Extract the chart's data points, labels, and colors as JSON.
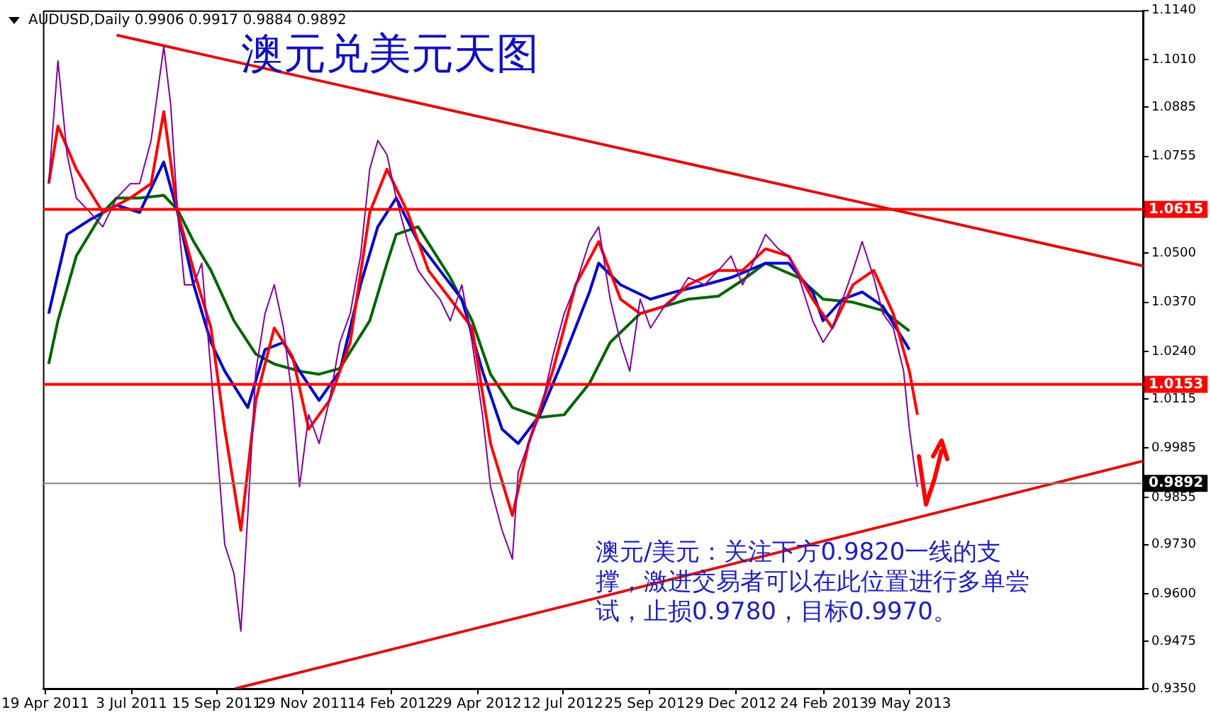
{
  "chart_data": {
    "type": "line",
    "title": "澳元兑美元天图",
    "annotations": [
      "AUDUSD,Daily  0.9906 0.9917 0.9884 0.9892",
      "澳元/美元：关注下方0.9820一线的支撑，激进交易者可以在此位置进行多单尝试，止损0.9780，目标0.9970。"
    ],
    "xlim": [
      "2011-04-17",
      "2013-11-28"
    ],
    "xticks": [
      {
        "value": "2011-04-19",
        "label": "19 Apr 2011"
      },
      {
        "value": "2011-07-03",
        "label": "3 Jul 2011"
      },
      {
        "value": "2011-09-15",
        "label": "15 Sep 2011"
      },
      {
        "value": "2011-11-29",
        "label": "29 Nov 2011"
      },
      {
        "value": "2012-02-14",
        "label": "14 Feb 2012"
      },
      {
        "value": "2012-04-29",
        "label": "29 Apr 2012"
      },
      {
        "value": "2012-07-12",
        "label": "12 Jul 2012"
      },
      {
        "value": "2012-09-25",
        "label": "25 Sep 2012"
      },
      {
        "value": "2012-12-09",
        "label": "9 Dec 2012"
      },
      {
        "value": "2013-02-24",
        "label": "24 Feb 2013"
      },
      {
        "value": "2013-05-09",
        "label": "9 May 2013"
      }
    ],
    "ylim": [
      0.935,
      1.114
    ],
    "yticks": [
      {
        "value": 1.114,
        "label": "1.1140"
      },
      {
        "value": 1.101,
        "label": "1.1010"
      },
      {
        "value": 1.0885,
        "label": "1.0885"
      },
      {
        "value": 1.0755,
        "label": "1.0755"
      },
      {
        "value": 1.0625,
        "label": null
      },
      {
        "value": 1.05,
        "label": "1.0500"
      },
      {
        "value": 1.037,
        "label": "1.0370"
      },
      {
        "value": 1.024,
        "label": "1.0240"
      },
      {
        "value": 1.0115,
        "label": "1.0115"
      },
      {
        "value": 0.9985,
        "label": "0.9985"
      },
      {
        "value": 0.9855,
        "label": "0.9855"
      },
      {
        "value": 0.973,
        "label": "0.9730"
      },
      {
        "value": 0.96,
        "label": "0.9600"
      },
      {
        "value": 0.9475,
        "label": "0.9475"
      },
      {
        "value": 0.935,
        "label": "0.9350"
      }
    ],
    "ref_lines": [
      {
        "axis": "y",
        "value": 1.0615,
        "label": "1.0615",
        "color": "#ff0000"
      },
      {
        "axis": "y",
        "value": 1.0153,
        "label": "1.0153",
        "color": "#ff0000"
      },
      {
        "axis": "y",
        "value": 0.9892,
        "label": "0.9892",
        "color": "#808080"
      }
    ],
    "marker": "none",
    "legend": false,
    "series": [
      {
        "type": "line",
        "color": "#8000a0",
        "x": [
          "2011-04-22",
          "2011-04-30",
          "2011-05-08",
          "2011-05-16",
          "2011-05-28",
          "2011-06-08",
          "2011-06-20",
          "2011-07-02",
          "2011-07-10",
          "2011-07-20",
          "2011-07-31",
          "2011-08-06",
          "2011-08-12",
          "2011-08-18",
          "2011-08-26",
          "2011-09-02",
          "2011-09-10",
          "2011-09-22",
          "2011-09-30",
          "2011-10-06",
          "2011-10-12",
          "2011-10-19",
          "2011-10-27",
          "2011-11-04",
          "2011-11-12",
          "2011-11-20",
          "2011-11-26",
          "2011-12-04",
          "2011-12-13",
          "2011-12-22",
          "2011-12-31",
          "2012-01-09",
          "2012-01-18",
          "2012-01-26",
          "2012-02-02",
          "2012-02-10",
          "2012-02-18",
          "2012-02-28",
          "2012-03-08",
          "2012-03-17",
          "2012-03-27",
          "2012-04-05",
          "2012-04-15",
          "2012-04-24",
          "2012-05-03",
          "2012-05-10",
          "2012-05-20",
          "2012-05-29",
          "2012-06-03",
          "2012-06-12",
          "2012-06-22",
          "2012-07-03",
          "2012-07-13",
          "2012-07-23",
          "2012-08-04",
          "2012-08-12",
          "2012-08-22",
          "2012-08-31",
          "2012-09-08",
          "2012-09-17",
          "2012-09-26",
          "2012-10-08",
          "2012-10-17",
          "2012-10-29",
          "2012-11-12",
          "2012-11-24",
          "2012-12-05",
          "2012-12-15",
          "2012-12-24",
          "2013-01-04",
          "2013-01-15",
          "2013-01-24",
          "2013-02-02",
          "2013-02-14",
          "2013-02-23",
          "2013-03-03",
          "2013-03-12",
          "2013-03-21",
          "2013-03-29",
          "2013-04-08",
          "2013-04-16",
          "2013-04-25",
          "2013-05-04",
          "2013-05-09",
          "2013-05-14",
          "2013-05-16"
        ],
        "values": [
          1.0683,
          1.1007,
          1.0759,
          1.0645,
          1.0607,
          1.0569,
          1.0645,
          1.0683,
          1.0683,
          1.0797,
          1.1045,
          1.0892,
          1.0607,
          1.0416,
          1.0416,
          1.0473,
          1.0188,
          0.973,
          0.9654,
          0.9502,
          0.9807,
          1.0188,
          1.034,
          1.0416,
          1.0302,
          1.0111,
          0.9883,
          1.0073,
          0.9997,
          1.0111,
          1.0264,
          1.034,
          1.0492,
          1.0721,
          1.0797,
          1.0759,
          1.0645,
          1.053,
          1.0454,
          1.0416,
          1.0378,
          1.0321,
          1.0416,
          1.0264,
          1.0073,
          0.9883,
          0.9768,
          0.9692,
          0.9921,
          0.9997,
          1.0073,
          1.0226,
          1.034,
          1.0416,
          1.053,
          1.0569,
          1.0378,
          1.0264,
          1.0188,
          1.0378,
          1.0302,
          1.0359,
          1.0378,
          1.0435,
          1.0416,
          1.0454,
          1.0492,
          1.0416,
          1.0473,
          1.0549,
          1.0511,
          1.0492,
          1.0435,
          1.0321,
          1.0264,
          1.0302,
          1.0378,
          1.0454,
          1.053,
          1.0435,
          1.034,
          1.0302,
          1.0188,
          1.0035,
          0.9921,
          0.9883
        ]
      },
      {
        "type": "line",
        "color": "#ff0000",
        "x": [
          "2011-04-22",
          "2011-04-30",
          "2011-05-16",
          "2011-06-08",
          "2011-07-02",
          "2011-07-20",
          "2011-07-31",
          "2011-08-12",
          "2011-08-26",
          "2011-09-10",
          "2011-09-22",
          "2011-10-06",
          "2011-10-19",
          "2011-11-04",
          "2011-11-20",
          "2011-12-04",
          "2011-12-22",
          "2012-01-09",
          "2012-01-26",
          "2012-02-10",
          "2012-02-28",
          "2012-03-17",
          "2012-04-05",
          "2012-04-24",
          "2012-05-10",
          "2012-05-29",
          "2012-06-12",
          "2012-07-03",
          "2012-07-23",
          "2012-08-12",
          "2012-08-31",
          "2012-09-17",
          "2012-10-08",
          "2012-10-29",
          "2012-11-24",
          "2012-12-15",
          "2013-01-04",
          "2013-01-24",
          "2013-02-14",
          "2013-03-03",
          "2013-03-21",
          "2013-04-08",
          "2013-04-25",
          "2013-05-09",
          "2013-05-16"
        ],
        "values": [
          1.0683,
          1.0835,
          1.0721,
          1.0607,
          1.0645,
          1.0683,
          1.0873,
          1.0607,
          1.0454,
          1.0302,
          1.0035,
          0.9768,
          1.0111,
          1.0302,
          1.0226,
          1.0035,
          1.0111,
          1.0264,
          1.0607,
          1.0721,
          1.0607,
          1.0454,
          1.0378,
          1.0302,
          0.9997,
          0.9807,
          0.9997,
          1.0188,
          1.0416,
          1.053,
          1.0378,
          1.034,
          1.0359,
          1.0416,
          1.0454,
          1.0454,
          1.0511,
          1.0492,
          1.0378,
          1.0302,
          1.0416,
          1.0454,
          1.034,
          1.0188,
          1.0073
        ]
      },
      {
        "type": "line",
        "color": "#0000cc",
        "x": [
          "2011-04-22",
          "2011-05-08",
          "2011-05-28",
          "2011-06-20",
          "2011-07-10",
          "2011-07-31",
          "2011-08-12",
          "2011-08-26",
          "2011-09-10",
          "2011-09-22",
          "2011-10-12",
          "2011-10-27",
          "2011-11-12",
          "2011-11-26",
          "2011-12-13",
          "2011-12-31",
          "2012-01-18",
          "2012-02-02",
          "2012-02-18",
          "2012-03-08",
          "2012-03-27",
          "2012-04-15",
          "2012-05-03",
          "2012-05-20",
          "2012-06-03",
          "2012-06-22",
          "2012-07-13",
          "2012-08-04",
          "2012-08-12",
          "2012-08-31",
          "2012-09-26",
          "2012-10-17",
          "2012-11-12",
          "2012-12-05",
          "2013-01-04",
          "2013-01-24",
          "2013-02-14",
          "2013-02-23",
          "2013-03-12",
          "2013-03-29",
          "2013-04-16",
          "2013-05-09"
        ],
        "values": [
          1.034,
          1.0549,
          1.0588,
          1.0626,
          1.0607,
          1.074,
          1.0607,
          1.0416,
          1.0264,
          1.0188,
          1.0092,
          1.0245,
          1.0264,
          1.0188,
          1.0111,
          1.0188,
          1.0416,
          1.0569,
          1.0645,
          1.053,
          1.0454,
          1.0378,
          1.0188,
          1.0035,
          0.9997,
          1.0073,
          1.0226,
          1.0397,
          1.0473,
          1.0416,
          1.0378,
          1.0397,
          1.0416,
          1.0435,
          1.0473,
          1.0473,
          1.0397,
          1.0321,
          1.0378,
          1.0397,
          1.0359,
          1.0245
        ]
      },
      {
        "type": "line",
        "color": "#006400",
        "x": [
          "2011-04-22",
          "2011-04-30",
          "2011-05-16",
          "2011-06-08",
          "2011-06-20",
          "2011-07-10",
          "2011-07-31",
          "2011-08-12",
          "2011-08-26",
          "2011-09-10",
          "2011-09-30",
          "2011-10-19",
          "2011-11-04",
          "2011-11-26",
          "2011-12-13",
          "2011-12-31",
          "2012-01-26",
          "2012-02-10",
          "2012-02-18",
          "2012-03-08",
          "2012-04-05",
          "2012-04-24",
          "2012-05-10",
          "2012-05-29",
          "2012-06-22",
          "2012-07-13",
          "2012-08-04",
          "2012-08-22",
          "2012-09-17",
          "2012-10-08",
          "2012-10-29",
          "2012-11-24",
          "2012-12-15",
          "2013-01-04",
          "2013-02-02",
          "2013-02-23",
          "2013-03-21",
          "2013-04-16",
          "2013-05-09"
        ],
        "values": [
          1.0207,
          1.0321,
          1.0492,
          1.0607,
          1.0645,
          1.0645,
          1.0652,
          1.0614,
          1.053,
          1.0454,
          1.0321,
          1.0233,
          1.0207,
          1.0188,
          1.018,
          1.0195,
          1.0321,
          1.0473,
          1.0549,
          1.0569,
          1.0435,
          1.0321,
          1.018,
          1.0092,
          1.0066,
          1.0073,
          1.0156,
          1.0264,
          1.034,
          1.0359,
          1.0378,
          1.0386,
          1.0428,
          1.0473,
          1.0435,
          1.0378,
          1.037,
          1.0348,
          1.0294
        ]
      },
      {
        "type": "line",
        "color": "#dd1111",
        "x": [
          "2011-06-20",
          "2013-11-28"
        ],
        "values": [
          1.1075,
          1.0466
        ]
      },
      {
        "type": "line",
        "color": "#dd1111",
        "x": [
          "2011-10-01",
          "2013-11-28"
        ],
        "values": [
          0.935,
          0.9951
        ]
      }
    ]
  }
}
